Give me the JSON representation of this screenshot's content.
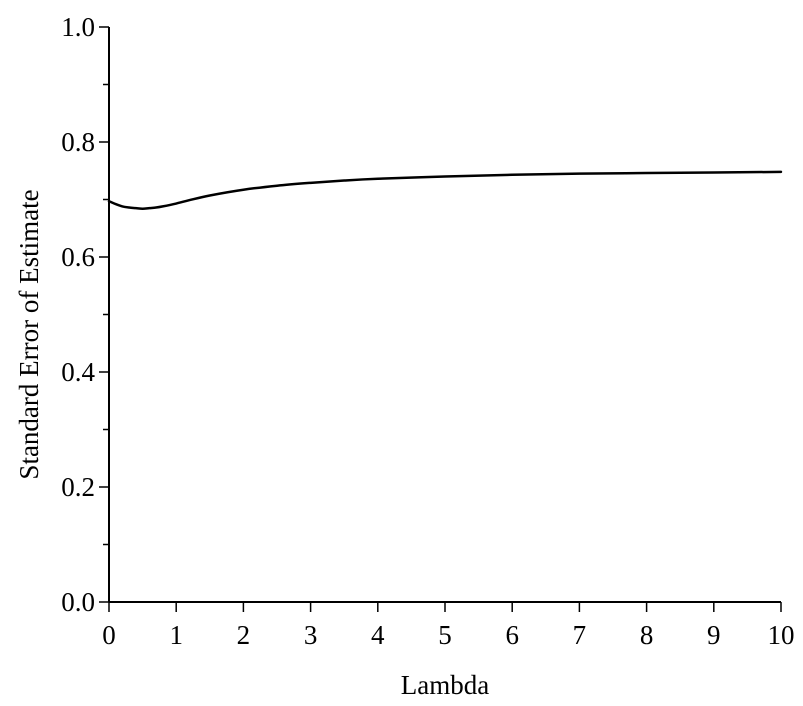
{
  "chart_data": {
    "type": "line",
    "title": "",
    "xlabel": "Lambda",
    "ylabel": "Standard Error of Estimate",
    "xlim": [
      0,
      10
    ],
    "ylim": [
      0,
      1
    ],
    "x_ticks": [
      "0",
      "1",
      "2",
      "3",
      "4",
      "5",
      "6",
      "7",
      "8",
      "9",
      "10"
    ],
    "y_ticks": [
      "0.0",
      "0.2",
      "0.4",
      "0.6",
      "0.8",
      "1.0"
    ],
    "grid": false,
    "line_color": "#000000",
    "series": [
      {
        "x": [
          0,
          0.1,
          0.2,
          0.3,
          0.4,
          0.5,
          0.6,
          0.7,
          0.8,
          1.0,
          1.2,
          1.5,
          2.0,
          2.5,
          3.0,
          3.5,
          4.0,
          5.0,
          6.0,
          7.0,
          8.0,
          9.0,
          10.0
        ],
        "y": [
          0.697,
          0.692,
          0.688,
          0.686,
          0.685,
          0.684,
          0.685,
          0.686,
          0.688,
          0.693,
          0.699,
          0.707,
          0.717,
          0.724,
          0.729,
          0.733,
          0.736,
          0.74,
          0.743,
          0.745,
          0.746,
          0.747,
          0.748
        ]
      }
    ]
  }
}
